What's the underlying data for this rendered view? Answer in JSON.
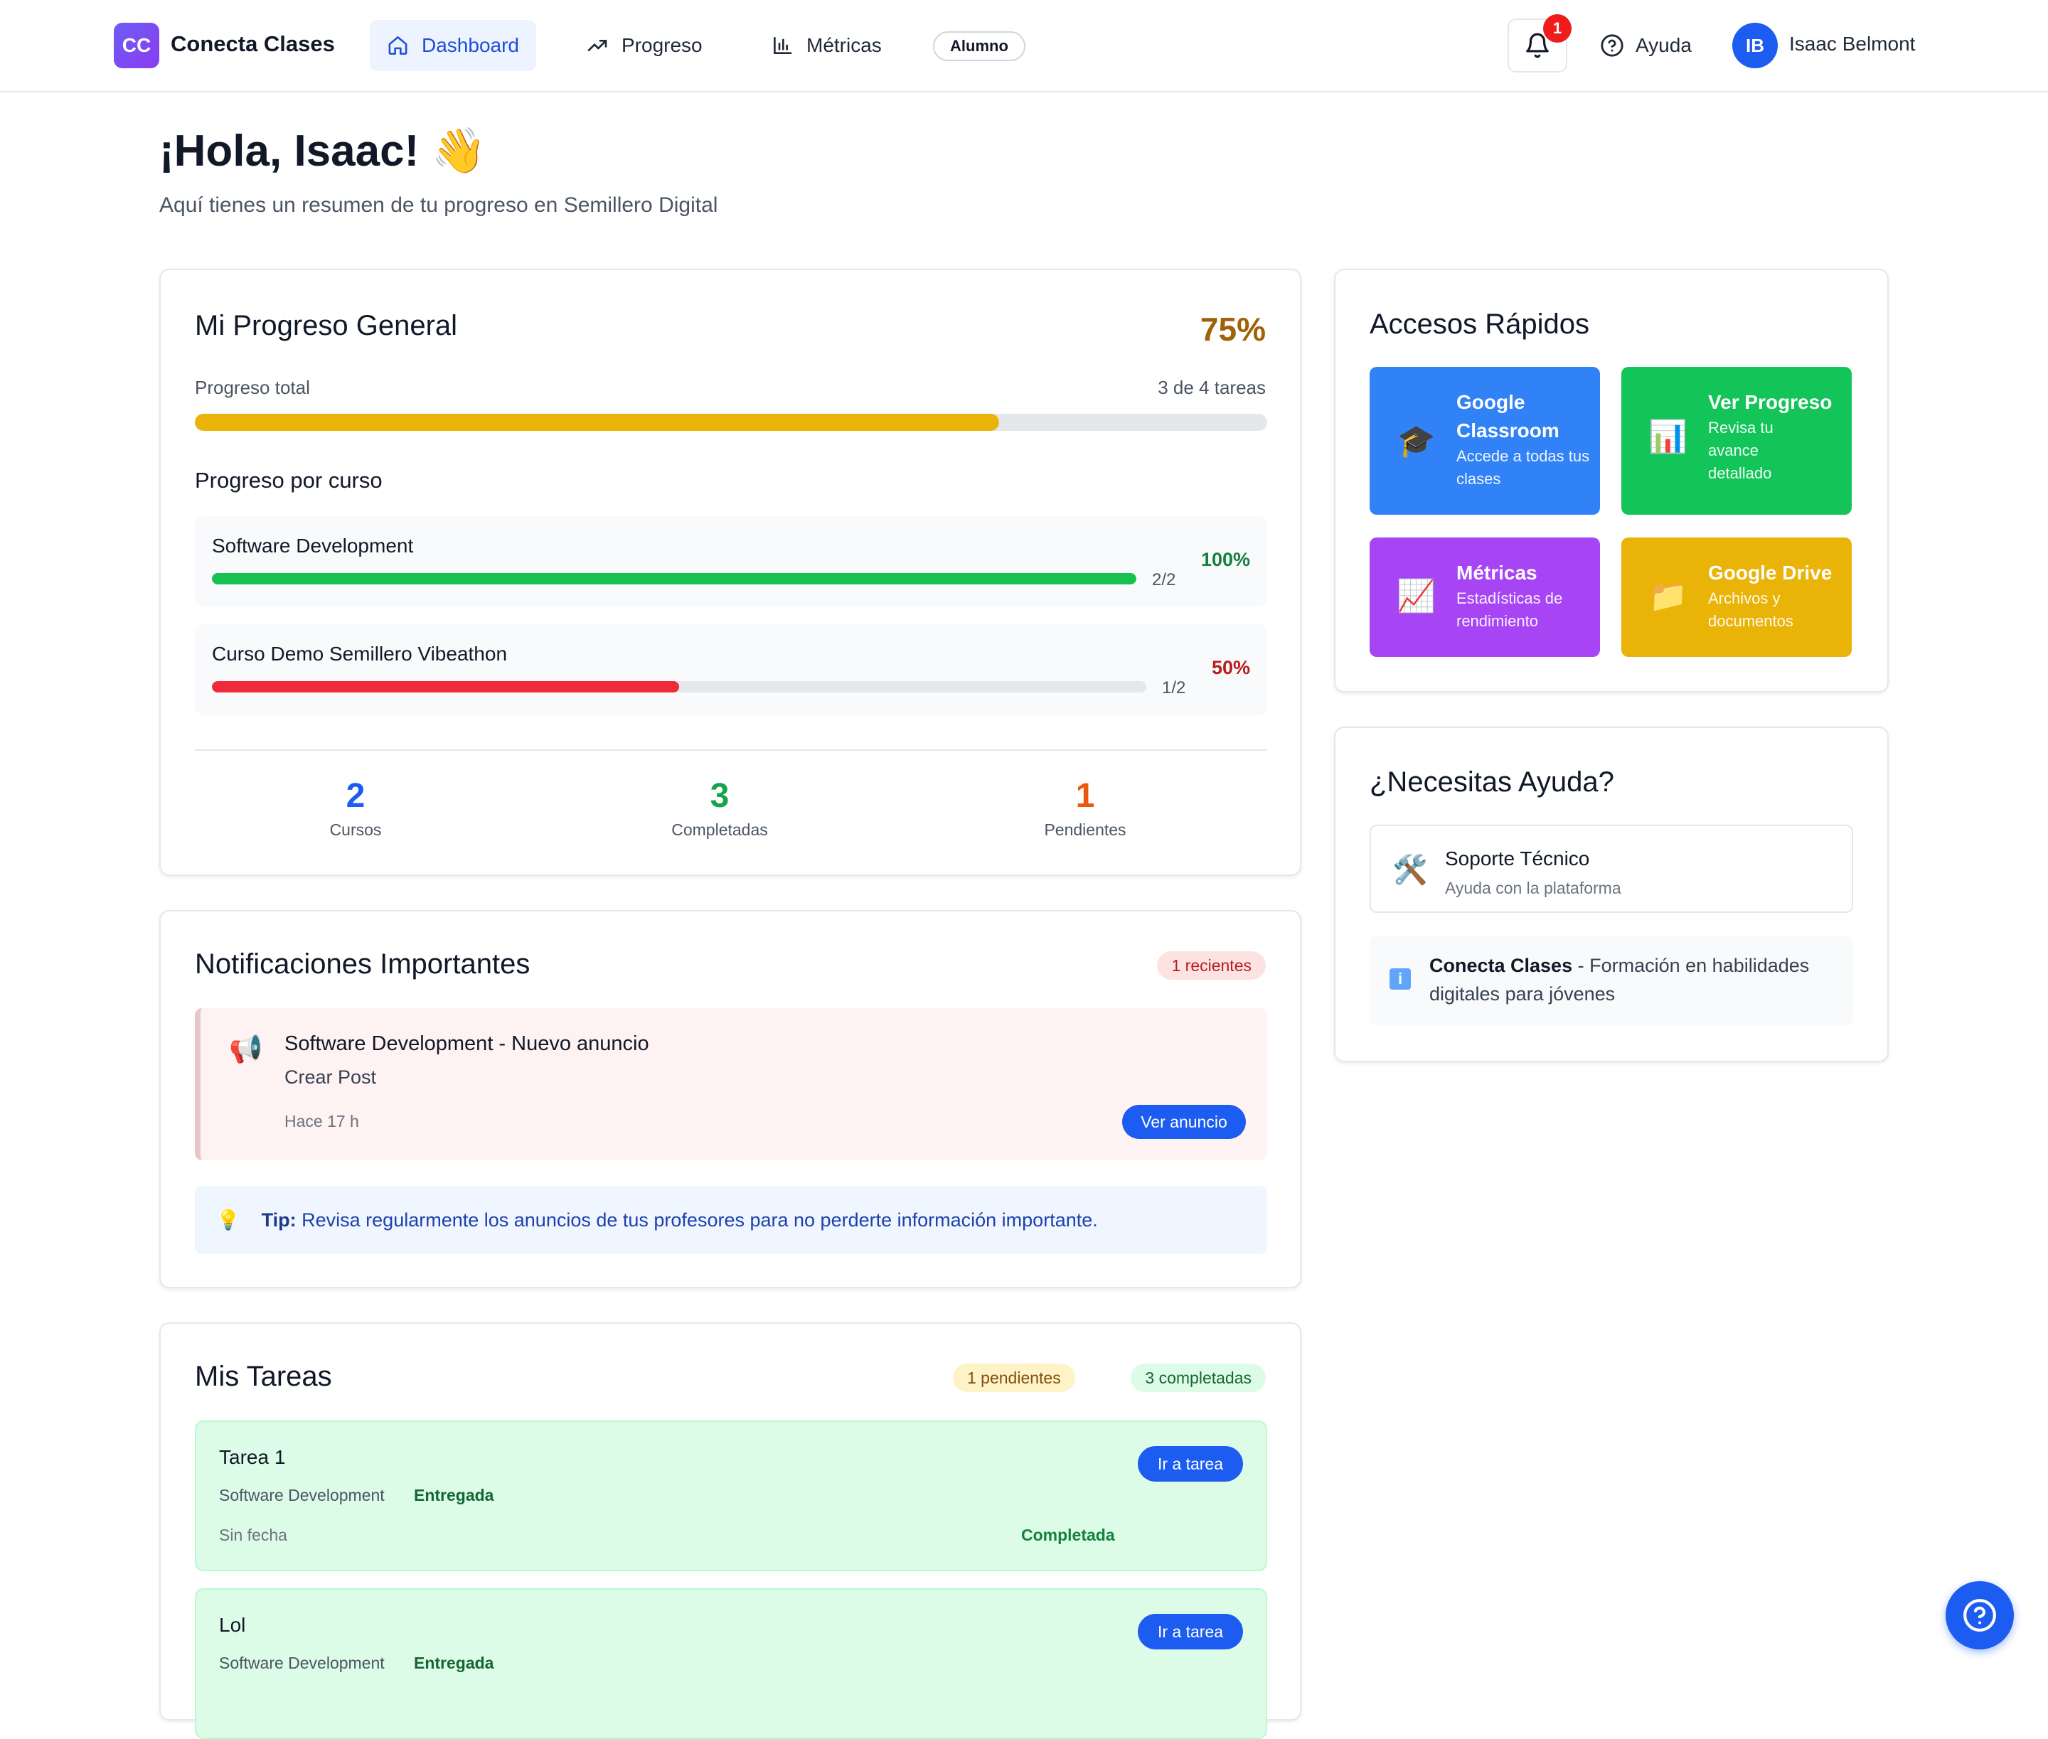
{
  "app": {
    "logo_text": "CC",
    "title": "Conecta Clases"
  },
  "nav": {
    "items": [
      {
        "label": "Dashboard",
        "icon": "home-icon",
        "active": true
      },
      {
        "label": "Progreso",
        "icon": "trending-up-icon"
      },
      {
        "label": "Métricas",
        "icon": "bar-chart-icon"
      }
    ],
    "role_badge": "Alumno",
    "notifications_count": "1",
    "help_label": "Ayuda",
    "user": {
      "initials": "IB",
      "name": "Isaac Belmont"
    }
  },
  "greeting": {
    "title": "¡Hola, Isaac! 👋",
    "subtitle": "Aquí tienes un resumen de tu progreso en Semillero Digital"
  },
  "progress": {
    "title": "Mi Progreso General",
    "percent": "75%",
    "percent_value": 0.75,
    "total_label": "Progreso total",
    "total_count": "3 de 4 tareas",
    "by_course_title": "Progreso por curso",
    "courses": [
      {
        "name": "Software Development",
        "count": "2/2",
        "percent": "100%",
        "value": 1.0,
        "color": "#16c14f",
        "pct_color": "#15803d"
      },
      {
        "name": "Curso Demo Semillero Vibeathon",
        "count": "1/2",
        "percent": "50%",
        "value": 0.5,
        "color": "#ef2b3b",
        "pct_color": "#b91c1c"
      }
    ],
    "stats": [
      {
        "value": "2",
        "label": "Cursos",
        "color": "#1d5cf0"
      },
      {
        "value": "3",
        "label": "Completadas",
        "color": "#16a34a"
      },
      {
        "value": "1",
        "label": "Pendientes",
        "color": "#ea580c"
      }
    ]
  },
  "notifications": {
    "title": "Notificaciones Importantes",
    "badge": "1 recientes",
    "items": [
      {
        "icon": "📢",
        "title": "Software Development - Nuevo anuncio",
        "body": "Crear Post",
        "time": "Hace 17 h",
        "button": "Ver anuncio"
      }
    ],
    "tip_icon": "💡",
    "tip_label": "Tip:",
    "tip_text": "Revisa regularmente los anuncios de tus profesores para no perderte información importante."
  },
  "tasks": {
    "title": "Mis Tareas",
    "pending_badge": "1 pendientes",
    "completed_badge": "3 completadas",
    "items": [
      {
        "title": "Tarea 1",
        "course": "Software Development",
        "state": "Entregada",
        "date": "Sin fecha",
        "status": "Completada",
        "button": "Ir a tarea"
      },
      {
        "title": "Lol",
        "course": "Software Development",
        "state": "Entregada",
        "button": "Ir a tarea"
      }
    ]
  },
  "quick_access": {
    "title": "Accesos Rápidos",
    "tiles": [
      {
        "icon": "🎓",
        "title": "Google Classroom",
        "desc": "Accede a todas tus clases",
        "color": "#3182f6"
      },
      {
        "icon": "📊",
        "title": "Ver Progreso",
        "desc": "Revisa tu avance detallado",
        "color": "#13c558"
      },
      {
        "icon": "📈",
        "title": "Métricas",
        "desc": "Estadísticas de rendimiento",
        "color": "#a745f5"
      },
      {
        "icon": "📁",
        "title": "Google Drive",
        "desc": "Archivos y documentos",
        "color": "#eab308"
      }
    ]
  },
  "help": {
    "title": "¿Necesitas Ayuda?",
    "support": {
      "icon": "🛠️",
      "title": "Soporte Técnico",
      "subtitle": "Ayuda con la plataforma"
    },
    "info_icon": "i",
    "info_brand": "Conecta Clases",
    "info_text": " - Formación en habilidades digitales para jóvenes"
  }
}
